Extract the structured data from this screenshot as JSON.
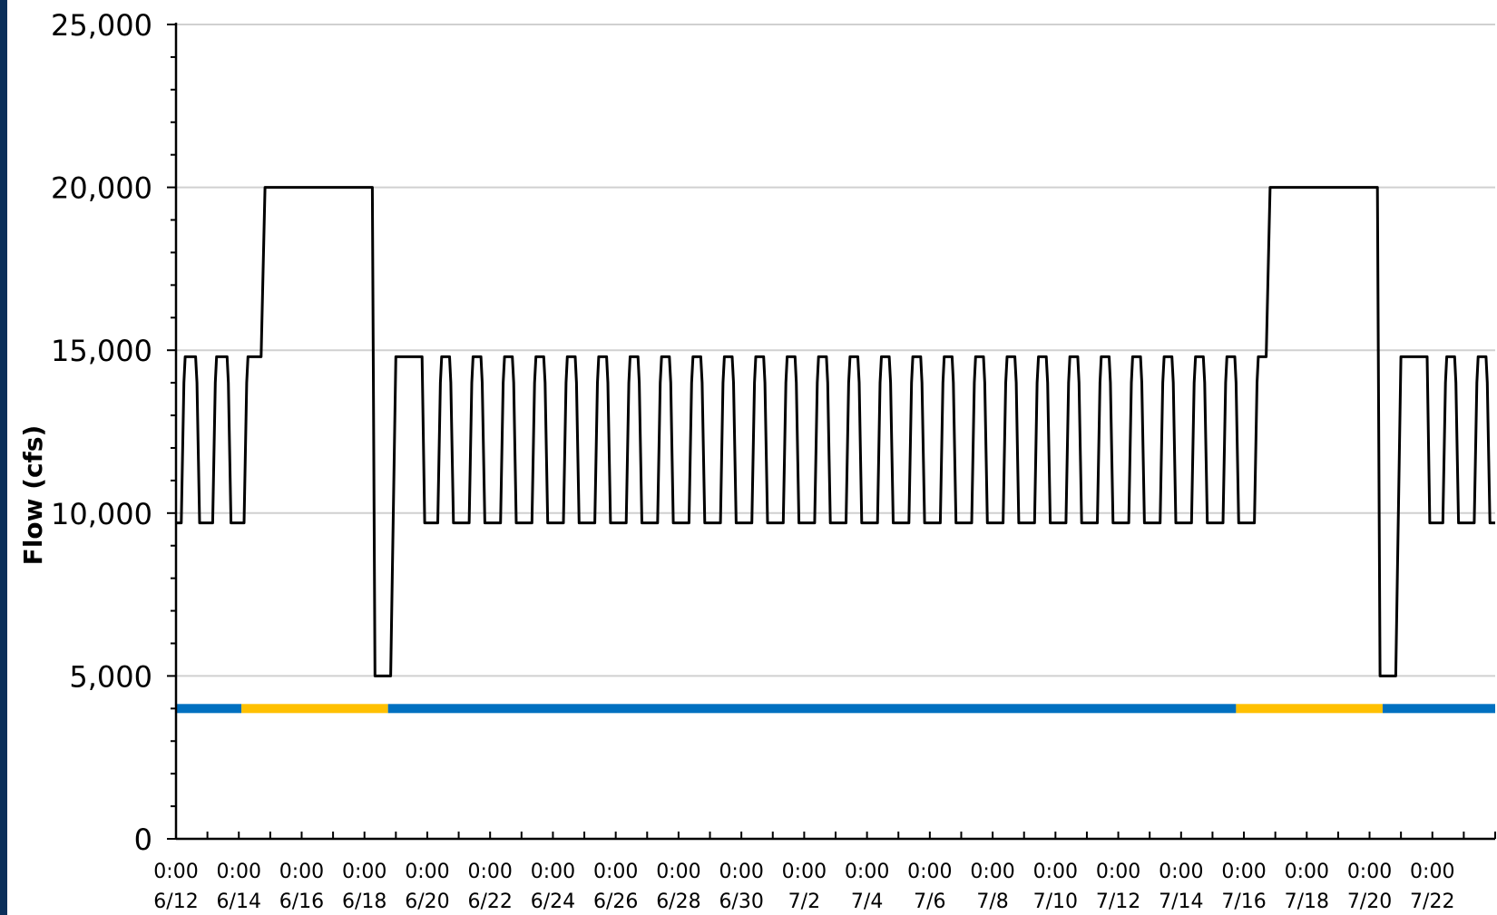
{
  "chart_data": {
    "type": "line",
    "title": "",
    "xlabel": "",
    "ylabel": "Flow (cfs)",
    "ylim": [
      0,
      25000
    ],
    "y_ticks": [
      {
        "value": 0,
        "label": "0"
      },
      {
        "value": 5000,
        "label": "5,000"
      },
      {
        "value": 10000,
        "label": "10,000"
      },
      {
        "value": 15000,
        "label": "15,000"
      },
      {
        "value": 20000,
        "label": "20,000"
      },
      {
        "value": 25000,
        "label": "25,000"
      }
    ],
    "xlim": [
      "6/12 0:00",
      "7/24 0:00"
    ],
    "x_ticks": [
      {
        "time": "0:00",
        "date": "6/12"
      },
      {
        "time": "0:00",
        "date": "6/14"
      },
      {
        "time": "0:00",
        "date": "6/16"
      },
      {
        "time": "0:00",
        "date": "6/18"
      },
      {
        "time": "0:00",
        "date": "6/20"
      },
      {
        "time": "0:00",
        "date": "6/22"
      },
      {
        "time": "0:00",
        "date": "6/24"
      },
      {
        "time": "0:00",
        "date": "6/26"
      },
      {
        "time": "0:00",
        "date": "6/28"
      },
      {
        "time": "0:00",
        "date": "6/30"
      },
      {
        "time": "0:00",
        "date": "7/2"
      },
      {
        "time": "0:00",
        "date": "7/4"
      },
      {
        "time": "0:00",
        "date": "7/6"
      },
      {
        "time": "0:00",
        "date": "7/8"
      },
      {
        "time": "0:00",
        "date": "7/10"
      },
      {
        "time": "0:00",
        "date": "7/12"
      },
      {
        "time": "0:00",
        "date": "7/14"
      },
      {
        "time": "0:00",
        "date": "7/16"
      },
      {
        "time": "0:00",
        "date": "7/18"
      },
      {
        "time": "0:00",
        "date": "7/20"
      },
      {
        "time": "0:00",
        "date": "7/22"
      }
    ],
    "grid": true,
    "legend": "none",
    "series": [
      {
        "color": "#000000",
        "points": [
          [
            "6/12 0:00",
            9700
          ],
          [
            "6/12 4:00",
            9700
          ],
          [
            "6/12 6:00",
            14000
          ],
          [
            "6/12 7:00",
            14800
          ],
          [
            "6/12 15:00",
            14800
          ],
          [
            "6/12 16:00",
            14000
          ],
          [
            "6/12 18:00",
            9700
          ],
          [
            "6/13 4:00",
            9700
          ],
          [
            "6/13 6:00",
            14000
          ],
          [
            "6/13 7:00",
            14800
          ],
          [
            "6/13 15:00",
            14800
          ],
          [
            "6/13 16:00",
            14000
          ],
          [
            "6/13 18:00",
            9700
          ],
          [
            "6/14 4:00",
            9700
          ],
          [
            "6/14 6:00",
            14000
          ],
          [
            "6/14 7:00",
            14800
          ],
          [
            "6/14 17:00",
            14800
          ],
          [
            "6/14 20:00",
            20000
          ],
          [
            "6/18 6:00",
            20000
          ],
          [
            "6/18 8:00",
            5000
          ],
          [
            "6/18 20:00",
            5000
          ],
          [
            "6/19 0:00",
            14800
          ],
          [
            "6/19 20:00",
            14800
          ],
          [
            "6/19 22:00",
            9700
          ],
          [
            "6/20 8:00",
            9700
          ],
          [
            "6/20 10:00",
            14000
          ],
          [
            "6/20 11:00",
            14800
          ],
          [
            "6/20 17:00",
            14800
          ],
          [
            "6/20 18:00",
            14000
          ],
          [
            "6/20 20:00",
            9700
          ],
          [
            "6/21 8:00",
            9700
          ],
          [
            "6/21 10:00",
            14000
          ],
          [
            "6/21 11:00",
            14800
          ],
          [
            "6/21 17:00",
            14800
          ],
          [
            "6/21 18:00",
            14000
          ],
          [
            "6/21 20:00",
            9700
          ],
          [
            "6/22 8:00",
            9700
          ],
          [
            "6/22 10:00",
            14000
          ],
          [
            "6/22 11:00",
            14800
          ],
          [
            "6/22 17:00",
            14800
          ],
          [
            "6/22 18:00",
            14000
          ],
          [
            "6/22 20:00",
            9700
          ],
          [
            "6/23 8:00",
            9700
          ],
          [
            "6/23 10:00",
            14000
          ],
          [
            "6/23 11:00",
            14800
          ],
          [
            "6/23 17:00",
            14800
          ],
          [
            "6/23 18:00",
            14000
          ],
          [
            "6/23 20:00",
            9700
          ],
          [
            "6/24 8:00",
            9700
          ],
          [
            "6/24 10:00",
            14000
          ],
          [
            "6/24 11:00",
            14800
          ],
          [
            "6/24 17:00",
            14800
          ],
          [
            "6/24 18:00",
            14000
          ],
          [
            "6/24 20:00",
            9700
          ],
          [
            "6/25 8:00",
            9700
          ],
          [
            "6/25 10:00",
            14000
          ],
          [
            "6/25 11:00",
            14800
          ],
          [
            "6/25 17:00",
            14800
          ],
          [
            "6/25 18:00",
            14000
          ],
          [
            "6/25 20:00",
            9700
          ],
          [
            "6/26 8:00",
            9700
          ],
          [
            "6/26 10:00",
            14000
          ],
          [
            "6/26 11:00",
            14800
          ],
          [
            "6/26 17:00",
            14800
          ],
          [
            "6/26 18:00",
            14000
          ],
          [
            "6/26 20:00",
            9700
          ],
          [
            "6/27 8:00",
            9700
          ],
          [
            "6/27 10:00",
            14000
          ],
          [
            "6/27 11:00",
            14800
          ],
          [
            "6/27 17:00",
            14800
          ],
          [
            "6/27 18:00",
            14000
          ],
          [
            "6/27 20:00",
            9700
          ],
          [
            "6/28 8:00",
            9700
          ],
          [
            "6/28 10:00",
            14000
          ],
          [
            "6/28 11:00",
            14800
          ],
          [
            "6/28 17:00",
            14800
          ],
          [
            "6/28 18:00",
            14000
          ],
          [
            "6/28 20:00",
            9700
          ],
          [
            "6/29 8:00",
            9700
          ],
          [
            "6/29 10:00",
            14000
          ],
          [
            "6/29 11:00",
            14800
          ],
          [
            "6/29 17:00",
            14800
          ],
          [
            "6/29 18:00",
            14000
          ],
          [
            "6/29 20:00",
            9700
          ],
          [
            "6/30 8:00",
            9700
          ],
          [
            "6/30 10:00",
            14000
          ],
          [
            "6/30 11:00",
            14800
          ],
          [
            "6/30 17:00",
            14800
          ],
          [
            "6/30 18:00",
            14000
          ],
          [
            "6/30 20:00",
            9700
          ],
          [
            "7/1 8:00",
            9700
          ],
          [
            "7/1 10:00",
            14000
          ],
          [
            "7/1 11:00",
            14800
          ],
          [
            "7/1 17:00",
            14800
          ],
          [
            "7/1 18:00",
            14000
          ],
          [
            "7/1 20:00",
            9700
          ],
          [
            "7/2 8:00",
            9700
          ],
          [
            "7/2 10:00",
            14000
          ],
          [
            "7/2 11:00",
            14800
          ],
          [
            "7/2 17:00",
            14800
          ],
          [
            "7/2 18:00",
            14000
          ],
          [
            "7/2 20:00",
            9700
          ],
          [
            "7/3 8:00",
            9700
          ],
          [
            "7/3 10:00",
            14000
          ],
          [
            "7/3 11:00",
            14800
          ],
          [
            "7/3 17:00",
            14800
          ],
          [
            "7/3 18:00",
            14000
          ],
          [
            "7/3 20:00",
            9700
          ],
          [
            "7/4 8:00",
            9700
          ],
          [
            "7/4 10:00",
            14000
          ],
          [
            "7/4 11:00",
            14800
          ],
          [
            "7/4 17:00",
            14800
          ],
          [
            "7/4 18:00",
            14000
          ],
          [
            "7/4 20:00",
            9700
          ],
          [
            "7/5 8:00",
            9700
          ],
          [
            "7/5 10:00",
            14000
          ],
          [
            "7/5 11:00",
            14800
          ],
          [
            "7/5 17:00",
            14800
          ],
          [
            "7/5 18:00",
            14000
          ],
          [
            "7/5 20:00",
            9700
          ],
          [
            "7/6 8:00",
            9700
          ],
          [
            "7/6 10:00",
            14000
          ],
          [
            "7/6 11:00",
            14800
          ],
          [
            "7/6 17:00",
            14800
          ],
          [
            "7/6 18:00",
            14000
          ],
          [
            "7/6 20:00",
            9700
          ],
          [
            "7/7 8:00",
            9700
          ],
          [
            "7/7 10:00",
            14000
          ],
          [
            "7/7 11:00",
            14800
          ],
          [
            "7/7 17:00",
            14800
          ],
          [
            "7/7 18:00",
            14000
          ],
          [
            "7/7 20:00",
            9700
          ],
          [
            "7/8 8:00",
            9700
          ],
          [
            "7/8 10:00",
            14000
          ],
          [
            "7/8 11:00",
            14800
          ],
          [
            "7/8 17:00",
            14800
          ],
          [
            "7/8 18:00",
            14000
          ],
          [
            "7/8 20:00",
            9700
          ],
          [
            "7/9 8:00",
            9700
          ],
          [
            "7/9 10:00",
            14000
          ],
          [
            "7/9 11:00",
            14800
          ],
          [
            "7/9 17:00",
            14800
          ],
          [
            "7/9 18:00",
            14000
          ],
          [
            "7/9 20:00",
            9700
          ],
          [
            "7/10 8:00",
            9700
          ],
          [
            "7/10 10:00",
            14000
          ],
          [
            "7/10 11:00",
            14800
          ],
          [
            "7/10 17:00",
            14800
          ],
          [
            "7/10 18:00",
            14000
          ],
          [
            "7/10 20:00",
            9700
          ],
          [
            "7/11 8:00",
            9700
          ],
          [
            "7/11 10:00",
            14000
          ],
          [
            "7/11 11:00",
            14800
          ],
          [
            "7/11 17:00",
            14800
          ],
          [
            "7/11 18:00",
            14000
          ],
          [
            "7/11 20:00",
            9700
          ],
          [
            "7/12 8:00",
            9700
          ],
          [
            "7/12 10:00",
            14000
          ],
          [
            "7/12 11:00",
            14800
          ],
          [
            "7/12 17:00",
            14800
          ],
          [
            "7/12 18:00",
            14000
          ],
          [
            "7/12 20:00",
            9700
          ],
          [
            "7/13 8:00",
            9700
          ],
          [
            "7/13 10:00",
            14000
          ],
          [
            "7/13 11:00",
            14800
          ],
          [
            "7/13 17:00",
            14800
          ],
          [
            "7/13 18:00",
            14000
          ],
          [
            "7/13 20:00",
            9700
          ],
          [
            "7/14 8:00",
            9700
          ],
          [
            "7/14 10:00",
            14000
          ],
          [
            "7/14 11:00",
            14800
          ],
          [
            "7/14 17:00",
            14800
          ],
          [
            "7/14 18:00",
            14000
          ],
          [
            "7/14 20:00",
            9700
          ],
          [
            "7/15 8:00",
            9700
          ],
          [
            "7/15 10:00",
            14000
          ],
          [
            "7/15 11:00",
            14800
          ],
          [
            "7/15 17:00",
            14800
          ],
          [
            "7/15 18:00",
            14000
          ],
          [
            "7/15 20:00",
            9700
          ],
          [
            "7/16 8:00",
            9700
          ],
          [
            "7/16 10:00",
            14000
          ],
          [
            "7/16 11:00",
            14800
          ],
          [
            "7/16 17:00",
            14800
          ],
          [
            "7/16 20:00",
            20000
          ],
          [
            "7/20 6:00",
            20000
          ],
          [
            "7/20 8:00",
            5000
          ],
          [
            "7/20 20:00",
            5000
          ],
          [
            "7/21 0:00",
            14800
          ],
          [
            "7/21 20:00",
            14800
          ],
          [
            "7/21 22:00",
            9700
          ],
          [
            "7/22 8:00",
            9700
          ],
          [
            "7/22 10:00",
            14000
          ],
          [
            "7/22 11:00",
            14800
          ],
          [
            "7/22 17:00",
            14800
          ],
          [
            "7/22 18:00",
            14000
          ],
          [
            "7/22 20:00",
            9700
          ],
          [
            "7/23 8:00",
            9700
          ],
          [
            "7/23 10:00",
            14000
          ],
          [
            "7/23 11:00",
            14800
          ],
          [
            "7/23 17:00",
            14800
          ],
          [
            "7/23 18:00",
            14000
          ],
          [
            "7/23 20:00",
            9700
          ],
          [
            "7/24 0:00",
            9700
          ]
        ]
      }
    ],
    "bands": [
      {
        "y": 4000,
        "color": "#0070c0",
        "start": "6/12 0:00",
        "end": "6/14 2:00"
      },
      {
        "y": 4000,
        "color": "#ffc000",
        "start": "6/14 2:00",
        "end": "6/18 18:00"
      },
      {
        "y": 4000,
        "color": "#0070c0",
        "start": "6/18 18:00",
        "end": "7/15 18:00"
      },
      {
        "y": 4000,
        "color": "#ffc000",
        "start": "7/15 18:00",
        "end": "7/20 10:00"
      },
      {
        "y": 4000,
        "color": "#0070c0",
        "start": "7/20 10:00",
        "end": "7/24 0:00"
      }
    ]
  }
}
